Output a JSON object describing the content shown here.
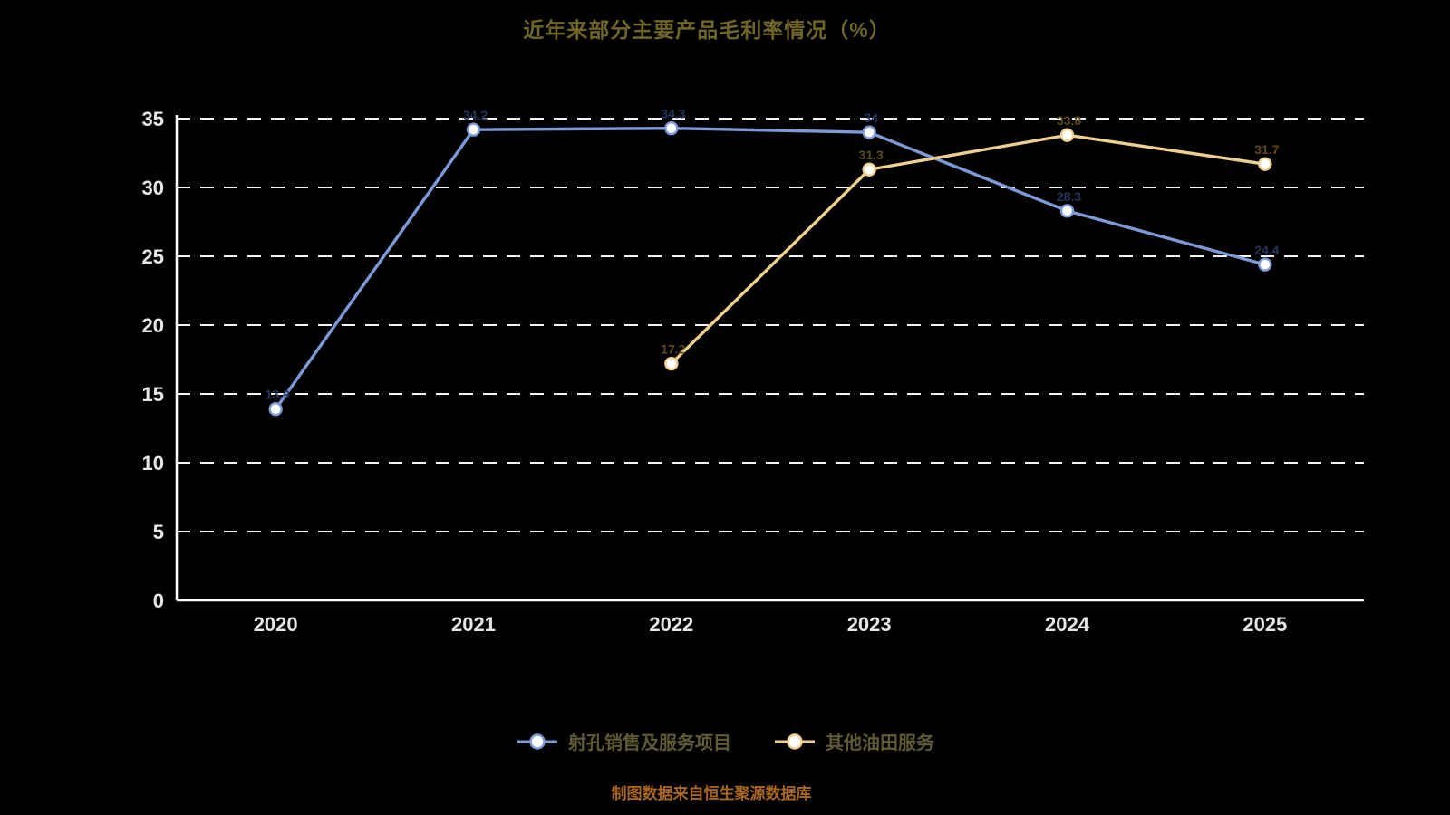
{
  "title": "近年来部分主要产品毛利率情况（%）",
  "footer": "制图数据来自恒生聚源数据库",
  "colors": {
    "background": "#000000",
    "axis": "#ffffff",
    "gridline": "#f5f5f5",
    "tick_label": "#e6e6e6",
    "title": "#6f6526",
    "footer": "#a9661c",
    "legend_text": "#5e5a33",
    "marker_fill": "#ffffff"
  },
  "chart_data": {
    "type": "line",
    "title": "近年来部分主要产品毛利率情况（%）",
    "categories": [
      "2020",
      "2021",
      "2022",
      "2023",
      "2024",
      "2025"
    ],
    "series": [
      {
        "name": "射孔销售及服务项目",
        "color": "#7d9ad8",
        "label_color": "#26355c",
        "values": [
          13.9,
          34.2,
          34.3,
          34.0,
          28.3,
          24.4
        ]
      },
      {
        "name": "其他油田服务",
        "color": "#f0cf92",
        "label_color": "#5c4a1c",
        "values": [
          null,
          null,
          17.2,
          31.3,
          33.8,
          31.7
        ]
      }
    ],
    "xlabel": "",
    "ylabel": "",
    "ylim": [
      0,
      35
    ],
    "yticks": [
      0,
      5,
      10,
      15,
      20,
      25,
      30,
      35
    ],
    "grid": "horizontal-dashed",
    "legend_position": "bottom"
  }
}
